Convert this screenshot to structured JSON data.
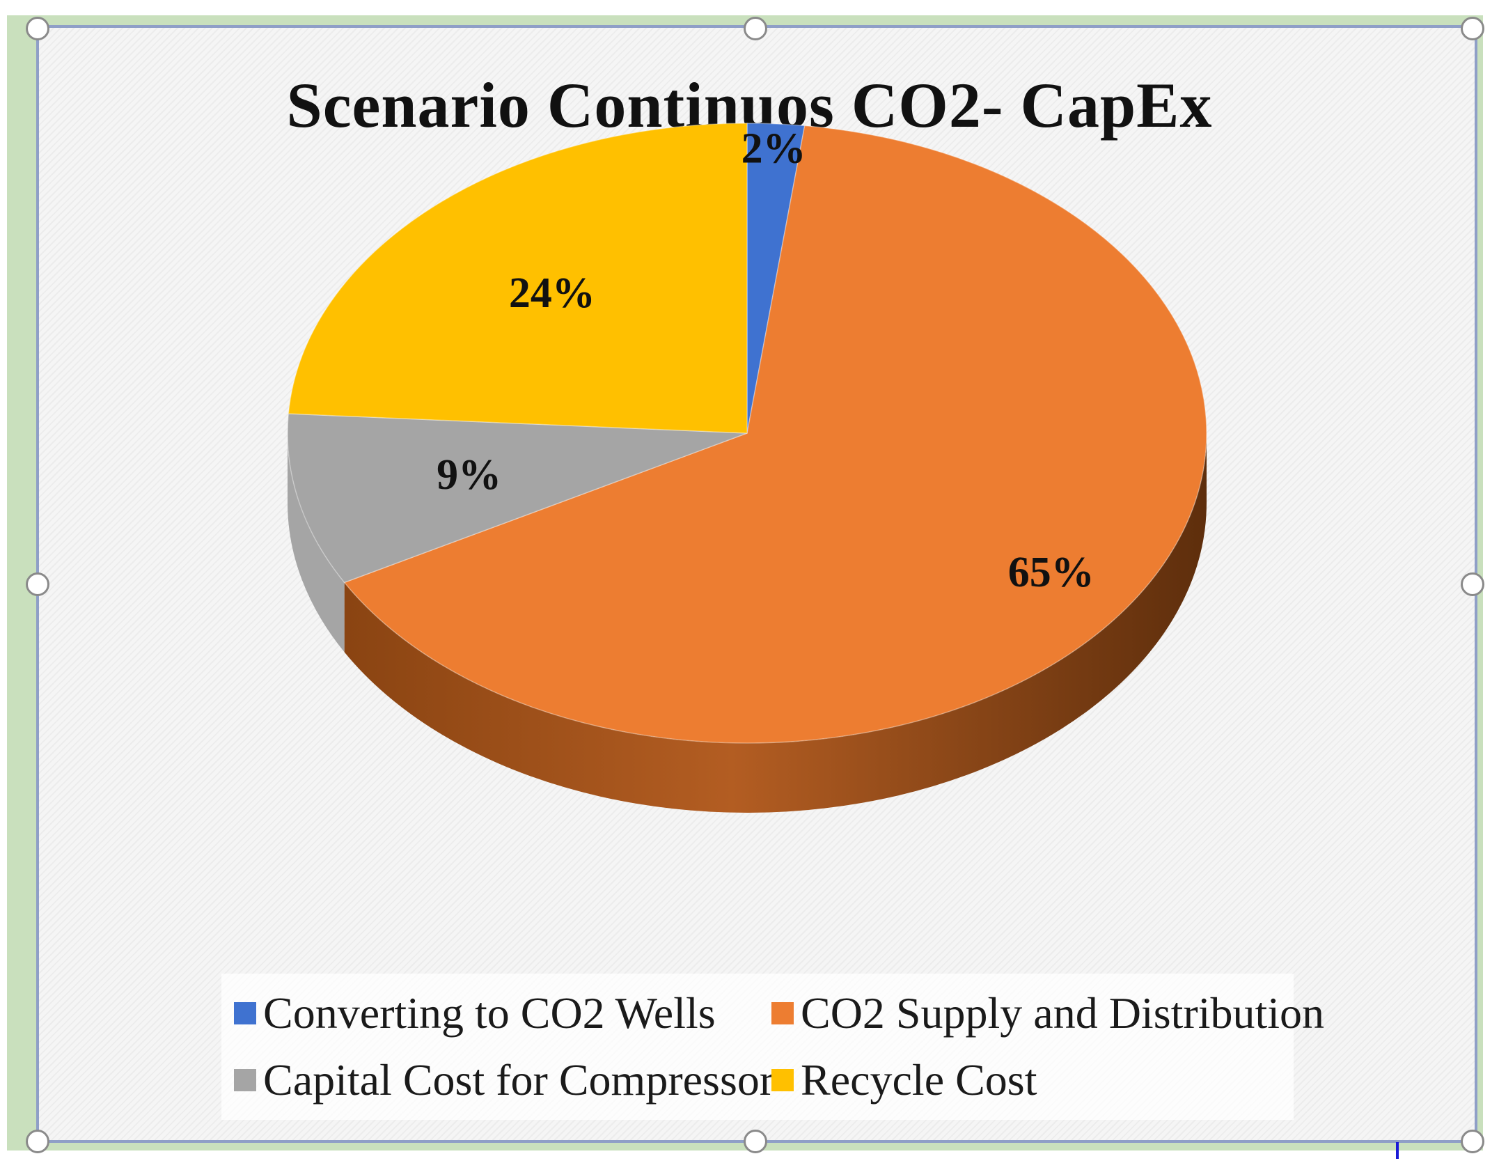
{
  "chart_data": {
    "type": "pie",
    "title": "Scenario Continuos CO2- CapEx",
    "slices": [
      {
        "name": "Converting to CO2 Wells",
        "value": 2,
        "label": "2%",
        "color": "#3f72d0"
      },
      {
        "name": "CO2 Supply and Distribution",
        "value": 65,
        "label": "65%",
        "color": "#ed7d31"
      },
      {
        "name": "Capital Cost for Compressor",
        "value": 9,
        "label": "9%",
        "color": "#a5a5a5"
      },
      {
        "name": "Recycle Cost",
        "value": 24,
        "label": "24%",
        "color": "#ffc000"
      }
    ],
    "legend_position": "bottom",
    "style": "3d"
  }
}
